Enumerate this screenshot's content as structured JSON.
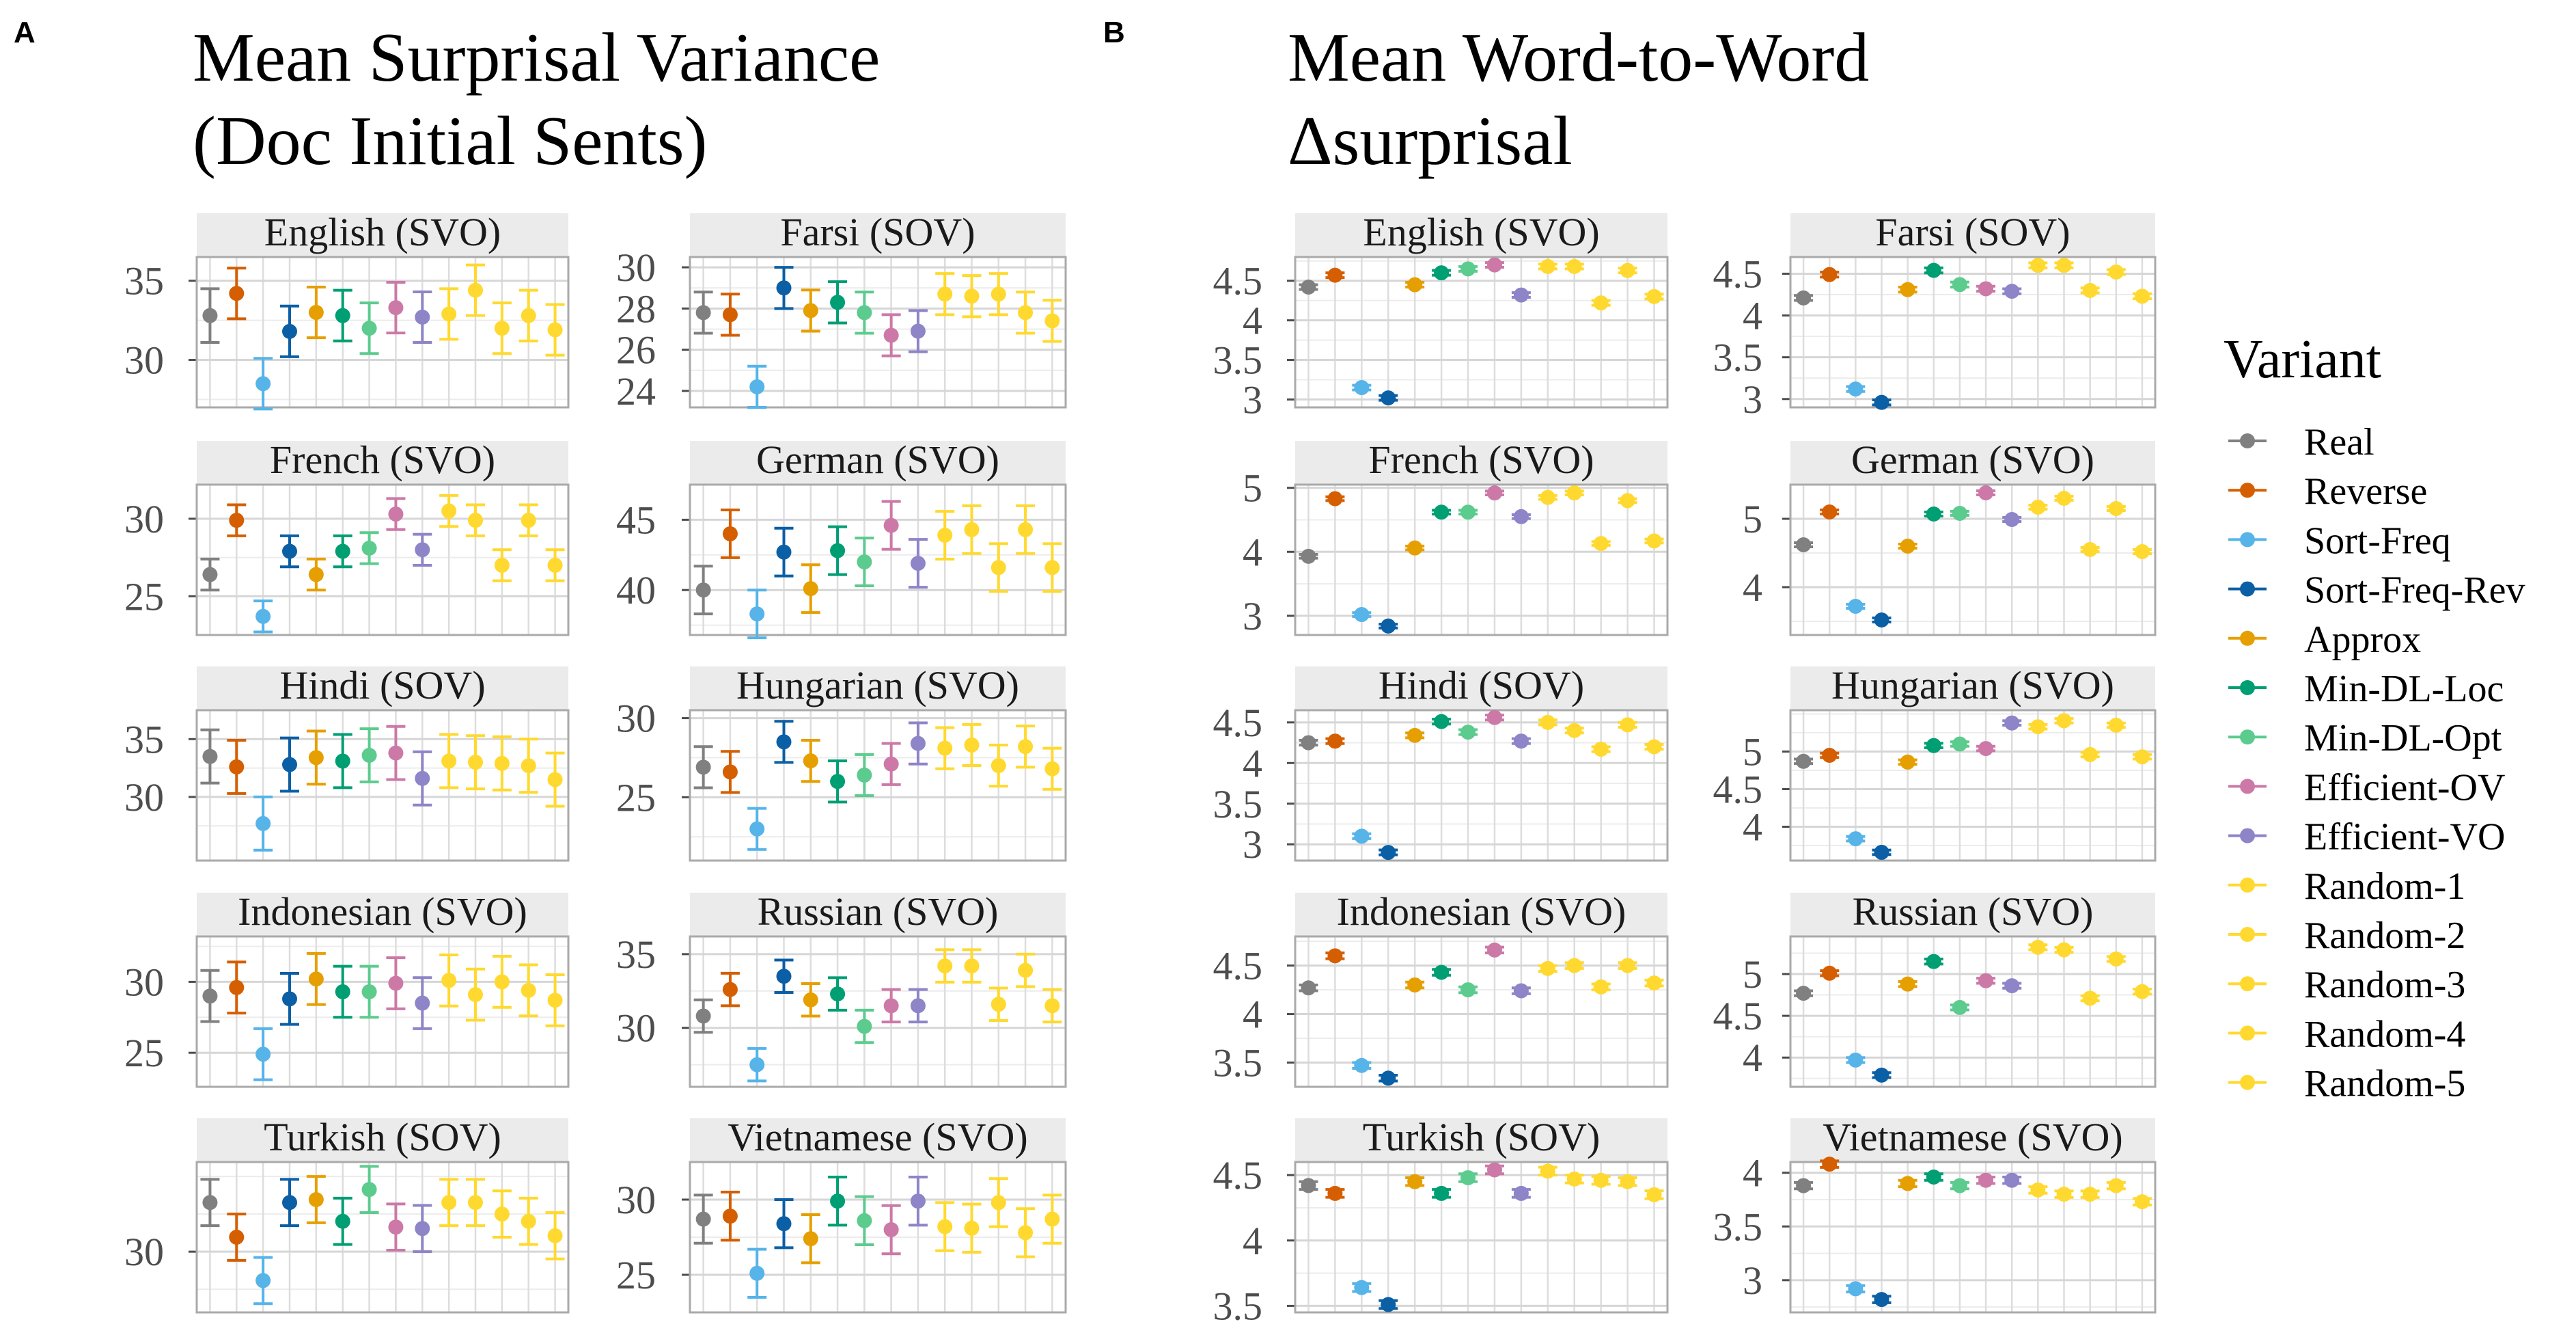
{
  "variant_colors": {
    "Real": "#808080",
    "Reverse": "#D55E00",
    "Sort-Freq": "#56B4E9",
    "Sort-Freq-Rev": "#0B5FA5",
    "Approx": "#E69F00",
    "Min-DL-Loc": "#009E73",
    "Min-DL-Opt": "#5CCB8E",
    "Efficient-OV": "#CC79A7",
    "Efficient-VO": "#8E84C8",
    "Random-1": "#FFD92F",
    "Random-2": "#FFD92F",
    "Random-3": "#FFD92F",
    "Random-4": "#FFD92F",
    "Random-5": "#FFD92F"
  },
  "legend": {
    "title": "Variant",
    "items": [
      "Real",
      "Reverse",
      "Sort-Freq",
      "Sort-Freq-Rev",
      "Approx",
      "Min-DL-Loc",
      "Min-DL-Opt",
      "Efficient-OV",
      "Efficient-VO",
      "Random-1",
      "Random-2",
      "Random-3",
      "Random-4",
      "Random-5"
    ]
  },
  "chart_data": [
    {
      "panel": "A",
      "type": "scatter",
      "title": "Mean Surprisal Variance\n(Doc Initial Sents)",
      "variants": [
        "Real",
        "Reverse",
        "Sort-Freq",
        "Sort-Freq-Rev",
        "Approx",
        "Min-DL-Loc",
        "Min-DL-Opt",
        "Efficient-OV",
        "Efficient-VO",
        "Random-1",
        "Random-2",
        "Random-3",
        "Random-4",
        "Random-5"
      ],
      "facets": [
        {
          "label": "English (SVO)",
          "ylim": [
            27,
            36.5
          ],
          "ticks": [
            30,
            35
          ],
          "values": [
            32.8,
            34.2,
            28.5,
            31.8,
            33.0,
            32.8,
            32.0,
            33.3,
            32.7,
            32.9,
            34.4,
            32.0,
            32.8,
            31.9
          ],
          "errors": [
            1.7,
            1.6,
            1.6,
            1.6,
            1.6,
            1.6,
            1.6,
            1.6,
            1.6,
            1.6,
            1.6,
            1.6,
            1.6,
            1.6
          ]
        },
        {
          "label": "Farsi (SOV)",
          "ylim": [
            23.2,
            30.5
          ],
          "ticks": [
            24,
            26,
            28,
            30
          ],
          "values": [
            27.8,
            27.7,
            24.2,
            29.0,
            27.9,
            28.3,
            27.8,
            26.7,
            26.9,
            28.7,
            28.6,
            28.7,
            27.8,
            27.4
          ],
          "errors": [
            1.0,
            1.0,
            1.0,
            1.0,
            1.0,
            1.0,
            1.0,
            1.0,
            1.0,
            1.0,
            1.0,
            1.0,
            1.0,
            1.0
          ]
        },
        {
          "label": "French (SVO)",
          "ylim": [
            22.5,
            32.2
          ],
          "ticks": [
            25,
            30
          ],
          "values": [
            26.4,
            29.9,
            23.7,
            27.9,
            26.4,
            27.9,
            28.1,
            30.3,
            28.0,
            30.5,
            29.9,
            27.0,
            29.9,
            27.0
          ],
          "errors": [
            1.0,
            1.0,
            1.0,
            1.0,
            1.0,
            1.0,
            1.0,
            1.0,
            1.0,
            1.0,
            1.0,
            1.0,
            1.0,
            1.0
          ]
        },
        {
          "label": "German (SVO)",
          "ylim": [
            36.8,
            47.5
          ],
          "ticks": [
            40,
            45
          ],
          "values": [
            40.0,
            44.0,
            38.3,
            42.7,
            40.1,
            42.8,
            42.0,
            44.6,
            41.9,
            43.9,
            44.3,
            41.6,
            44.3,
            41.6
          ],
          "errors": [
            1.7,
            1.7,
            1.7,
            1.7,
            1.7,
            1.7,
            1.7,
            1.7,
            1.7,
            1.7,
            1.7,
            1.7,
            1.7,
            1.7
          ]
        },
        {
          "label": "Hindi (SOV)",
          "ylim": [
            24.5,
            37.5
          ],
          "ticks": [
            30,
            35
          ],
          "values": [
            33.5,
            32.6,
            27.7,
            32.8,
            33.4,
            33.1,
            33.6,
            33.8,
            31.6,
            33.1,
            33.0,
            32.9,
            32.7,
            31.5
          ],
          "errors": [
            2.3,
            2.3,
            2.3,
            2.3,
            2.3,
            2.3,
            2.3,
            2.3,
            2.3,
            2.3,
            2.3,
            2.3,
            2.3,
            2.3
          ]
        },
        {
          "label": "Hungarian (SVO)",
          "ylim": [
            21,
            30.5
          ],
          "ticks": [
            25,
            30
          ],
          "values": [
            26.9,
            26.6,
            23.0,
            28.5,
            27.3,
            26.0,
            26.4,
            27.1,
            28.4,
            28.1,
            28.3,
            27.0,
            28.2,
            26.8
          ],
          "errors": [
            1.3,
            1.3,
            1.3,
            1.3,
            1.3,
            1.3,
            1.3,
            1.3,
            1.3,
            1.3,
            1.3,
            1.3,
            1.3,
            1.3
          ]
        },
        {
          "label": "Indonesian (SVO)",
          "ylim": [
            22.6,
            33.2
          ],
          "ticks": [
            25,
            30
          ],
          "values": [
            29.0,
            29.6,
            24.9,
            28.8,
            30.2,
            29.3,
            29.3,
            29.9,
            28.5,
            30.1,
            29.1,
            30.0,
            29.4,
            28.7
          ],
          "errors": [
            1.8,
            1.8,
            1.8,
            1.8,
            1.8,
            1.8,
            1.8,
            1.8,
            1.8,
            1.8,
            1.8,
            1.8,
            1.8,
            1.8
          ]
        },
        {
          "label": "Russian (SVO)",
          "ylim": [
            26,
            36.2
          ],
          "ticks": [
            30,
            35
          ],
          "values": [
            30.8,
            32.6,
            27.5,
            33.5,
            31.9,
            32.3,
            30.1,
            31.5,
            31.5,
            34.2,
            34.2,
            31.6,
            33.9,
            31.5
          ],
          "errors": [
            1.1,
            1.1,
            1.1,
            1.1,
            1.1,
            1.1,
            1.1,
            1.1,
            1.1,
            1.1,
            1.1,
            1.1,
            1.1,
            1.1
          ]
        },
        {
          "label": "Turkish (SOV)",
          "ylim": [
            25.8,
            36.2
          ],
          "ticks": [
            30
          ],
          "values": [
            33.4,
            31.0,
            28.0,
            33.4,
            33.6,
            32.1,
            34.3,
            31.7,
            31.6,
            33.4,
            33.4,
            32.6,
            32.1,
            31.1
          ],
          "errors": [
            1.6,
            1.6,
            1.6,
            1.6,
            1.6,
            1.6,
            1.6,
            1.6,
            1.6,
            1.6,
            1.6,
            1.6,
            1.6,
            1.6
          ]
        },
        {
          "label": "Vietnamese (SVO)",
          "ylim": [
            22.5,
            32.5
          ],
          "ticks": [
            25,
            30
          ],
          "values": [
            28.7,
            28.9,
            25.1,
            28.4,
            27.4,
            29.9,
            28.6,
            28.0,
            29.9,
            28.2,
            28.1,
            29.8,
            27.8,
            28.7
          ],
          "errors": [
            1.6,
            1.6,
            1.6,
            1.6,
            1.6,
            1.6,
            1.6,
            1.6,
            1.6,
            1.6,
            1.6,
            1.6,
            1.6,
            1.6
          ]
        }
      ]
    },
    {
      "panel": "B",
      "type": "scatter",
      "title": "Mean Word-to-Word\nΔsurprisal",
      "variants": [
        "Real",
        "Reverse",
        "Sort-Freq",
        "Sort-Freq-Rev",
        "Approx",
        "Min-DL-Loc",
        "Min-DL-Opt",
        "Efficient-OV",
        "Efficient-VO",
        "Random-1",
        "Random-2",
        "Random-3",
        "Random-4",
        "Random-5"
      ],
      "facets": [
        {
          "label": "English (SVO)",
          "ylim": [
            2.9,
            4.8
          ],
          "ticks": [
            3.0,
            3.5,
            4.0,
            4.5
          ],
          "values": [
            4.42,
            4.57,
            3.15,
            3.02,
            4.45,
            4.6,
            4.65,
            4.7,
            4.32,
            4.68,
            4.68,
            4.22,
            4.63,
            4.3
          ],
          "errors": [
            0.03,
            0.03,
            0.03,
            0.03,
            0.03,
            0.03,
            0.03,
            0.03,
            0.03,
            0.03,
            0.03,
            0.03,
            0.03,
            0.03
          ]
        },
        {
          "label": "Farsi (SOV)",
          "ylim": [
            2.9,
            4.7
          ],
          "ticks": [
            3.0,
            3.5,
            4.0,
            4.5
          ],
          "values": [
            4.21,
            4.49,
            3.12,
            2.96,
            4.31,
            4.54,
            4.37,
            4.32,
            4.29,
            4.6,
            4.6,
            4.3,
            4.52,
            4.23
          ],
          "errors": [
            0.03,
            0.03,
            0.03,
            0.03,
            0.03,
            0.03,
            0.03,
            0.03,
            0.03,
            0.03,
            0.03,
            0.03,
            0.03,
            0.03
          ]
        },
        {
          "label": "French (SVO)",
          "ylim": [
            2.7,
            5.05
          ],
          "ticks": [
            3,
            4,
            5
          ],
          "values": [
            3.93,
            4.83,
            3.02,
            2.84,
            4.06,
            4.62,
            4.62,
            4.92,
            4.55,
            4.85,
            4.92,
            4.13,
            4.8,
            4.17
          ],
          "errors": [
            0.03,
            0.03,
            0.03,
            0.03,
            0.03,
            0.03,
            0.03,
            0.03,
            0.03,
            0.03,
            0.03,
            0.03,
            0.03,
            0.03
          ]
        },
        {
          "label": "German (SVO)",
          "ylim": [
            3.3,
            5.5
          ],
          "ticks": [
            4,
            5
          ],
          "values": [
            4.62,
            5.1,
            3.72,
            3.52,
            4.6,
            5.07,
            5.08,
            5.38,
            4.99,
            5.17,
            5.3,
            4.55,
            5.15,
            4.52
          ],
          "errors": [
            0.03,
            0.03,
            0.03,
            0.03,
            0.03,
            0.03,
            0.03,
            0.03,
            0.03,
            0.03,
            0.03,
            0.03,
            0.03,
            0.03
          ]
        },
        {
          "label": "Hindi (SOV)",
          "ylim": [
            2.8,
            4.65
          ],
          "ticks": [
            3.0,
            3.5,
            4.0,
            4.5
          ],
          "values": [
            4.25,
            4.27,
            3.1,
            2.9,
            4.34,
            4.51,
            4.38,
            4.56,
            4.27,
            4.5,
            4.4,
            4.17,
            4.47,
            4.2
          ],
          "errors": [
            0.03,
            0.03,
            0.03,
            0.03,
            0.03,
            0.03,
            0.03,
            0.03,
            0.03,
            0.03,
            0.03,
            0.03,
            0.03,
            0.03
          ]
        },
        {
          "label": "Hungarian (SVO)",
          "ylim": [
            3.55,
            5.55
          ],
          "ticks": [
            4.0,
            4.5,
            5.0
          ],
          "values": [
            4.87,
            4.95,
            3.84,
            3.66,
            4.86,
            5.08,
            5.1,
            5.04,
            5.38,
            5.33,
            5.41,
            4.96,
            5.35,
            4.93
          ],
          "errors": [
            0.03,
            0.03,
            0.03,
            0.03,
            0.03,
            0.03,
            0.03,
            0.03,
            0.03,
            0.03,
            0.03,
            0.03,
            0.03,
            0.03
          ]
        },
        {
          "label": "Indonesian (SVO)",
          "ylim": [
            3.25,
            4.8
          ],
          "ticks": [
            3.5,
            4.0,
            4.5
          ],
          "values": [
            4.27,
            4.6,
            3.47,
            3.34,
            4.3,
            4.43,
            4.25,
            4.66,
            4.24,
            4.47,
            4.5,
            4.28,
            4.5,
            4.32
          ],
          "errors": [
            0.03,
            0.03,
            0.03,
            0.03,
            0.03,
            0.03,
            0.03,
            0.03,
            0.03,
            0.03,
            0.03,
            0.03,
            0.03,
            0.03
          ]
        },
        {
          "label": "Russian (SVO)",
          "ylim": [
            3.65,
            5.45
          ],
          "ticks": [
            4.0,
            4.5,
            5.0
          ],
          "values": [
            4.77,
            5.01,
            3.97,
            3.79,
            4.88,
            5.15,
            4.6,
            4.92,
            4.86,
            5.32,
            5.29,
            4.71,
            5.18,
            4.79
          ],
          "errors": [
            0.03,
            0.03,
            0.03,
            0.03,
            0.03,
            0.03,
            0.03,
            0.03,
            0.03,
            0.03,
            0.03,
            0.03,
            0.03,
            0.03
          ]
        },
        {
          "label": "Turkish (SOV)",
          "ylim": [
            3.45,
            4.6
          ],
          "ticks": [
            3.5,
            4.0,
            4.5
          ],
          "values": [
            4.42,
            4.36,
            3.64,
            3.51,
            4.45,
            4.36,
            4.48,
            4.54,
            4.36,
            4.53,
            4.47,
            4.46,
            4.45,
            4.35
          ],
          "errors": [
            0.03,
            0.03,
            0.03,
            0.03,
            0.03,
            0.03,
            0.03,
            0.03,
            0.03,
            0.03,
            0.03,
            0.03,
            0.03,
            0.03
          ]
        },
        {
          "label": "Vietnamese (SVO)",
          "ylim": [
            2.7,
            4.1
          ],
          "ticks": [
            3.0,
            3.5,
            4.0
          ],
          "values": [
            3.88,
            4.08,
            2.92,
            2.82,
            3.9,
            3.96,
            3.88,
            3.93,
            3.93,
            3.84,
            3.8,
            3.8,
            3.88,
            3.73
          ],
          "errors": [
            0.03,
            0.03,
            0.03,
            0.03,
            0.03,
            0.03,
            0.03,
            0.03,
            0.03,
            0.03,
            0.03,
            0.03,
            0.03,
            0.03
          ]
        }
      ]
    }
  ]
}
